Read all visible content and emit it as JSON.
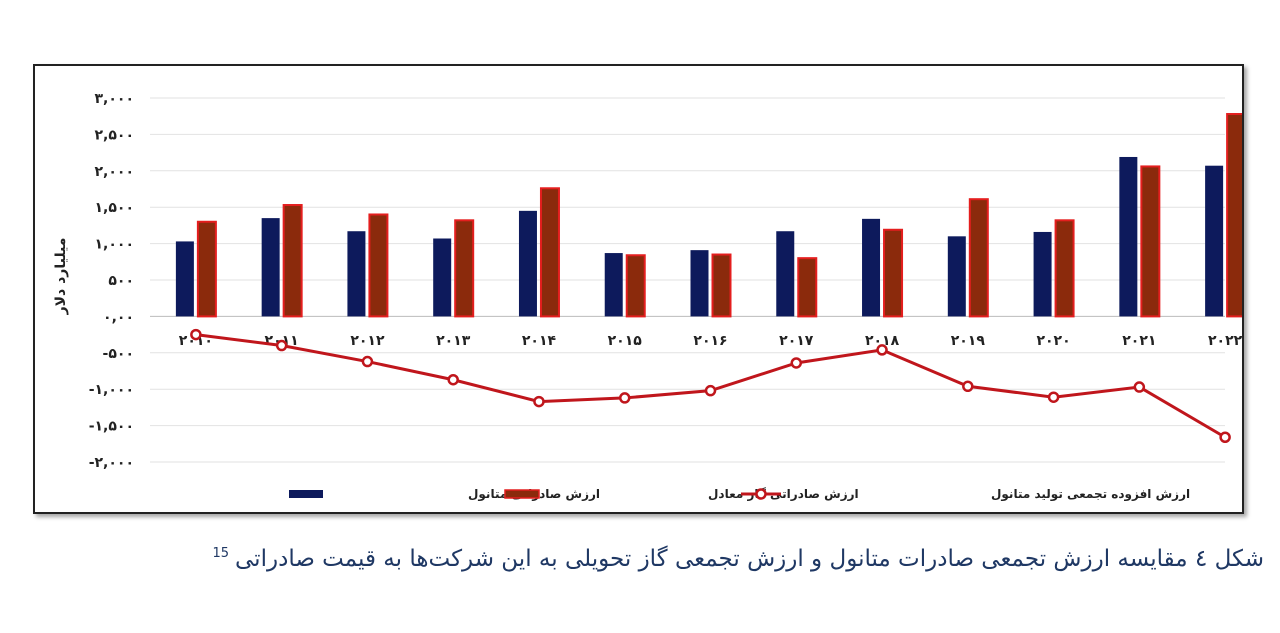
{
  "caption": {
    "text": "شکل ٤ مقایسه ارزش تجمعی صادرات متانول و ارزش تجمعی گاز تحویلی به این شرکت‌ها به قیمت صادراتی",
    "footnote": "15"
  },
  "chart_data": {
    "type": "bar",
    "ylabel": "میلیارد دلار",
    "ylim": [
      -2000,
      3000
    ],
    "y_ticks": [
      3000,
      2500,
      2000,
      1500,
      1000,
      500,
      0,
      -500,
      -1000,
      -1500,
      -2000
    ],
    "y_tick_labels": [
      "۳,۰۰۰",
      "۲,۵۰۰",
      "۲,۰۰۰",
      "۱,۵۰۰",
      "۱,۰۰۰",
      "۵۰۰",
      "۰,۰۰",
      "-۵۰۰",
      "-۱,۰۰۰",
      "-۱,۵۰۰",
      "-۲,۰۰۰"
    ],
    "categories": [
      "۲۰۱۰",
      "۲۰۱۱",
      "۲۰۱۲",
      "۲۰۱۳",
      "۲۰۱۴",
      "۲۰۱۵",
      "۲۰۱۶",
      "۲۰۱۷",
      "۲۰۱۸",
      "۲۰۱۹",
      "۲۰۲۰",
      "۲۰۲۱",
      "۲۰۲۲"
    ],
    "grid": true,
    "legend_position": "bottom",
    "series": [
      {
        "name": "ارزش صادراتی متانول",
        "kind": "bar",
        "color": "#0d1a5c",
        "values": [
          1030,
          1350,
          1170,
          1070,
          1450,
          870,
          910,
          1170,
          1340,
          1100,
          1160,
          2190,
          2070
        ]
      },
      {
        "name": "ارزش صادراتی گاز معادل",
        "kind": "bar",
        "color": "#8b2a0c",
        "edge": "#e41e1e",
        "values": [
          1300,
          1530,
          1400,
          1320,
          1760,
          840,
          850,
          800,
          1190,
          1610,
          1320,
          2060,
          2780
        ]
      },
      {
        "name": "ارزش افزوده تجمعی تولید متانول",
        "kind": "line",
        "color": "#c0161c",
        "values": [
          -250,
          -400,
          -620,
          -870,
          -1170,
          -1120,
          -1020,
          -640,
          -460,
          -960,
          -1110,
          -970,
          -1660
        ]
      }
    ]
  }
}
